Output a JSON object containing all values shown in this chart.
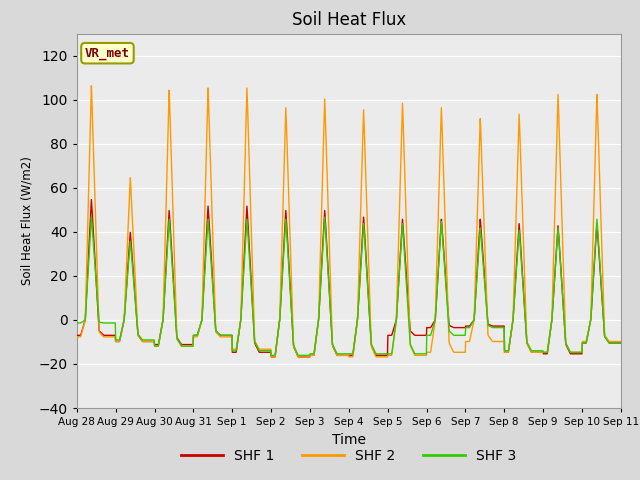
{
  "title": "Soil Heat Flux",
  "xlabel": "Time",
  "ylabel": "Soil Heat Flux (W/m2)",
  "ylim": [
    -40,
    130
  ],
  "yticks": [
    -40,
    -20,
    0,
    20,
    40,
    60,
    80,
    100,
    120
  ],
  "bg_color": "#d9d9d9",
  "plot_bg": "#ebebeb",
  "shf1_color": "#cc0000",
  "shf2_color": "#ff9900",
  "shf3_color": "#33cc00",
  "legend_labels": [
    "SHF 1",
    "SHF 2",
    "SHF 3"
  ],
  "annotation_text": "VR_met",
  "annotation_bg": "#ffffcc",
  "annotation_border": "#999900",
  "xtick_labels": [
    "Aug 28",
    "Aug 29",
    "Aug 30",
    "Aug 31",
    "Sep 1",
    "Sep 2",
    "Sep 3",
    "Sep 4",
    "Sep 5",
    "Sep 6",
    "Sep 7",
    "Sep 8",
    "Sep 9",
    "Sep 10",
    "Sep 11"
  ],
  "day_peaks_shf1": [
    55,
    40,
    50,
    52,
    52,
    50,
    50,
    47,
    46,
    46,
    46,
    44,
    43,
    44
  ],
  "day_peaks_shf2": [
    107,
    65,
    105,
    106,
    106,
    97,
    101,
    96,
    99,
    97,
    92,
    94,
    103,
    103
  ],
  "day_peaks_shf3": [
    47,
    36,
    46,
    46,
    46,
    46,
    47,
    44,
    44,
    45,
    42,
    41,
    42,
    46
  ],
  "night_shf1": [
    -10,
    -14,
    -16,
    -10,
    -21,
    -24,
    -23,
    -23,
    -10,
    -5,
    -4,
    -21,
    -22,
    -15
  ],
  "night_shf2": [
    -11,
    -14,
    -17,
    -11,
    -19,
    -24,
    -23,
    -24,
    -23,
    -21,
    -14,
    -21,
    -21,
    -14
  ],
  "night_shf3": [
    -2,
    -13,
    -17,
    -10,
    -20,
    -23,
    -22,
    -22,
    -22,
    -10,
    -5,
    -20,
    -21,
    -15
  ],
  "n_days": 14,
  "pts_per_day": 96
}
